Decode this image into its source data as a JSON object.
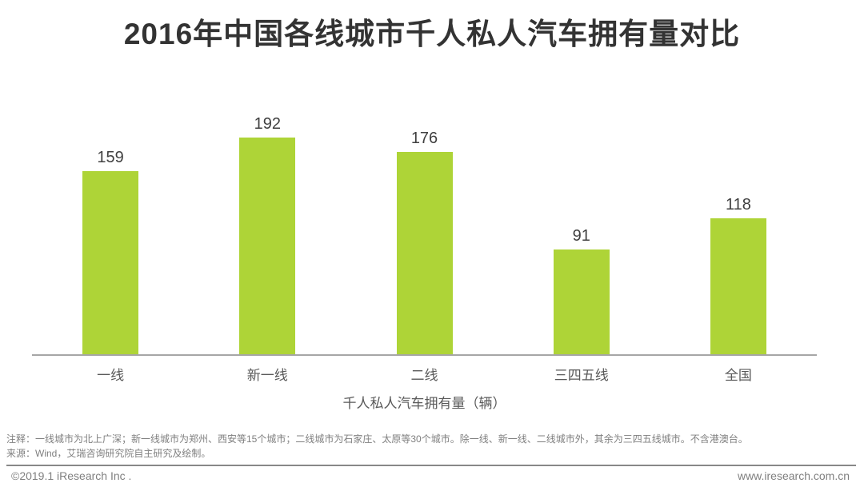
{
  "page": {
    "title": "2016年中国各线城市千人私人汽车拥有量对比"
  },
  "chart_data": {
    "type": "bar",
    "title": "2016年中国各线城市千人私人汽车拥有量对比",
    "categories": [
      "一线",
      "新一线",
      "二线",
      "三四五线",
      "全国"
    ],
    "values": [
      159,
      192,
      176,
      91,
      118
    ],
    "xlabel": "千人私人汽车拥有量（辆）",
    "ylabel": "",
    "ylim": [
      0,
      208
    ],
    "grid": false,
    "legend": "none",
    "data_labels_shown": true,
    "bar_color": "#aed437"
  },
  "notes": {
    "annotation": "注释：一线城市为北上广深；新一线城市为郑州、西安等15个城市；二线城市为石家庄、太原等30个城市。除一线、新一线、二线城市外，其余为三四五线城市。不含港澳台。",
    "source": "来源：Wind，艾瑞咨询研究院自主研究及绘制。"
  },
  "footer": {
    "copyright": "©2019.1 iResearch Inc .",
    "website": "www.iresearch.com.cn"
  },
  "colors": {
    "bar": "#aed437",
    "title_text": "#333333",
    "value_label": "#404040",
    "axis_label": "#595959",
    "note_text": "#7f7f7f",
    "footer_text": "#808080",
    "axis_line": "#a6a6a6",
    "divider": "#888888",
    "background": "#ffffff"
  }
}
